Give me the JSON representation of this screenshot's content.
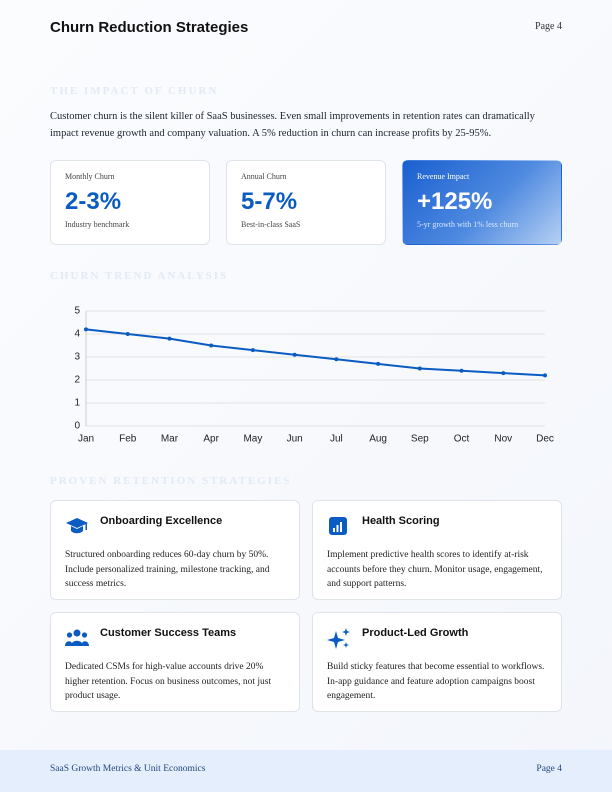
{
  "header": {
    "title": "Churn Reduction Strategies",
    "page": "Page 4"
  },
  "sections": [
    "THE IMPACT OF CHURN",
    "CHURN TREND ANALYSIS",
    "PROVEN RETENTION STRATEGIES"
  ],
  "intro": "Customer churn is the silent killer of SaaS businesses. Even small improvements in retention rates can dramatically impact revenue growth and company valuation. A 5% reduction in churn can increase profits by 25-95%.",
  "stats": [
    {
      "label": "Monthly Churn",
      "value": "2-3%",
      "note": "Industry benchmark"
    },
    {
      "label": "Annual Churn",
      "value": "5-7%",
      "note": "Best-in-class SaaS"
    },
    {
      "label": "Revenue Impact",
      "value": "+125%",
      "note": "5-yr growth with 1% less churn"
    }
  ],
  "chart_data": {
    "type": "line",
    "categories": [
      "Jan",
      "Feb",
      "Mar",
      "Apr",
      "May",
      "Jun",
      "Jul",
      "Aug",
      "Sep",
      "Oct",
      "Nov",
      "Dec"
    ],
    "series": [
      {
        "color": "#0a5cc2",
        "values": [
          4.2,
          4.0,
          3.8,
          3.5,
          3.3,
          3.1,
          2.9,
          2.7,
          2.5,
          2.4,
          2.3,
          2.2
        ]
      }
    ],
    "ylim": [
      0,
      5
    ],
    "yticks": [
      0,
      1,
      2,
      3,
      4,
      5
    ],
    "grid": true
  },
  "strategies": [
    {
      "title": "Onboarding Excellence",
      "text": "Structured onboarding reduces 60-day churn by 50%. Include personalized training, milestone tracking, and success metrics."
    },
    {
      "title": "Health Scoring",
      "text": "Implement predictive health scores to identify at-risk accounts before they churn. Monitor usage, engagement, and support patterns."
    },
    {
      "title": "Customer Success Teams",
      "text": "Dedicated CSMs for high-value accounts drive 20% higher retention. Focus on business outcomes, not just product usage."
    },
    {
      "title": "Product-Led Growth",
      "text": "Build sticky features that become essential to workflows. In-app guidance and feature adoption campaigns boost engagement."
    }
  ],
  "footer": {
    "text": "SaaS Growth Metrics & Unit Economics",
    "page": "Page 4"
  }
}
